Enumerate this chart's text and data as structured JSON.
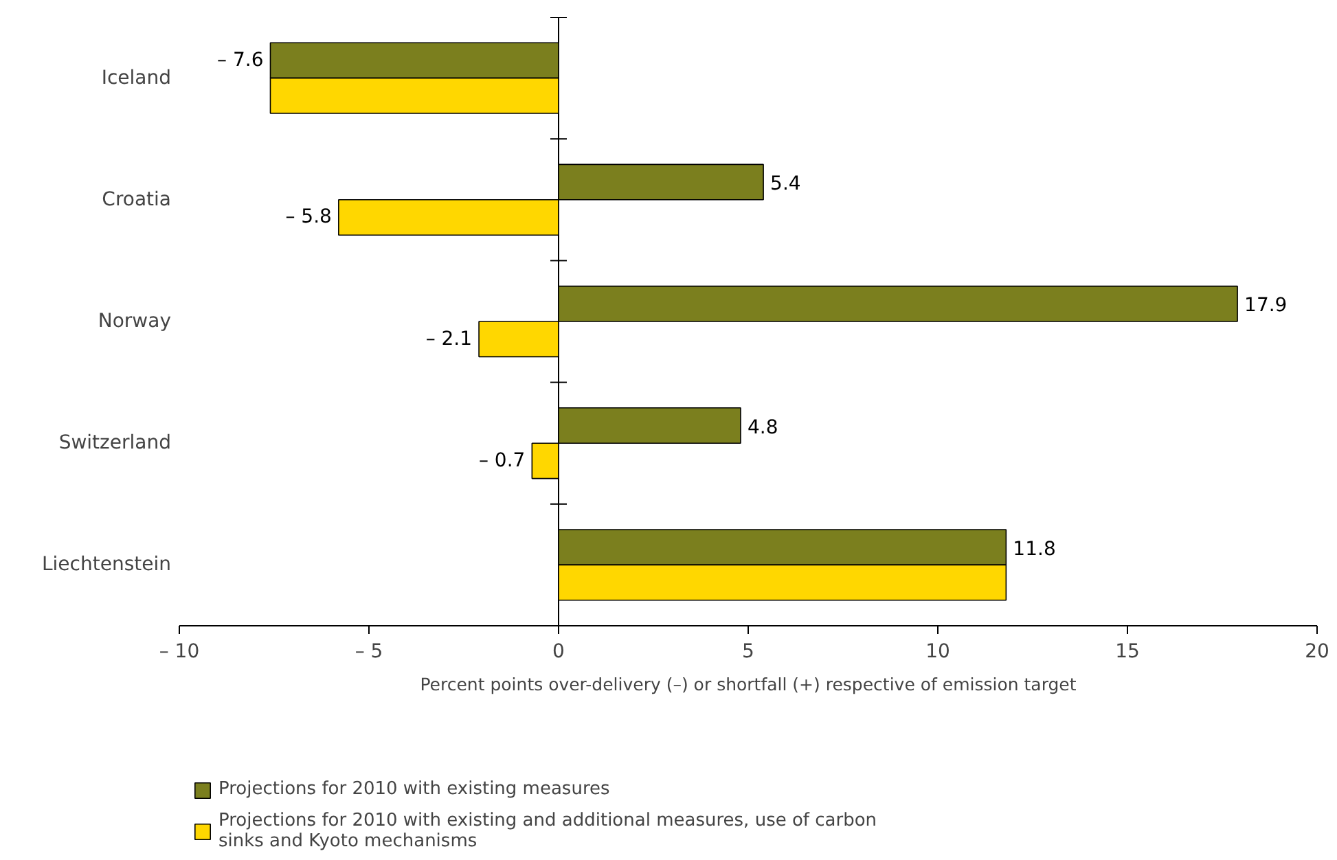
{
  "chart_data": {
    "type": "bar",
    "orientation": "horizontal",
    "categories": [
      "Iceland",
      "Croatia",
      "Norway",
      "Switzerland",
      "Liechtenstein"
    ],
    "series": [
      {
        "name": "Projections for 2010 with existing measures",
        "color": "#7b7f1e",
        "values": [
          -7.6,
          5.4,
          17.9,
          4.8,
          11.8
        ],
        "value_labels": [
          "– 7.6",
          "5.4",
          "17.9",
          "4.8",
          "11.8"
        ]
      },
      {
        "name": "Projections for 2010 with existing and additional measures, use of carbon sinks and Kyoto mechanisms",
        "color": "#ffd700",
        "values": [
          -7.6,
          -5.8,
          -2.1,
          -0.7,
          11.8
        ],
        "value_labels": [
          null,
          "– 5.8",
          "– 2.1",
          "– 0.7",
          null
        ]
      }
    ],
    "xlabel": "Percent points over-delivery (–) or shortfall (+) respective of emission target",
    "xlim": [
      -10,
      20
    ],
    "xticks": [
      {
        "value": -10,
        "label": "– 10"
      },
      {
        "value": -5,
        "label": "– 5"
      },
      0,
      5,
      10,
      15,
      20
    ],
    "legend": "bottom"
  }
}
